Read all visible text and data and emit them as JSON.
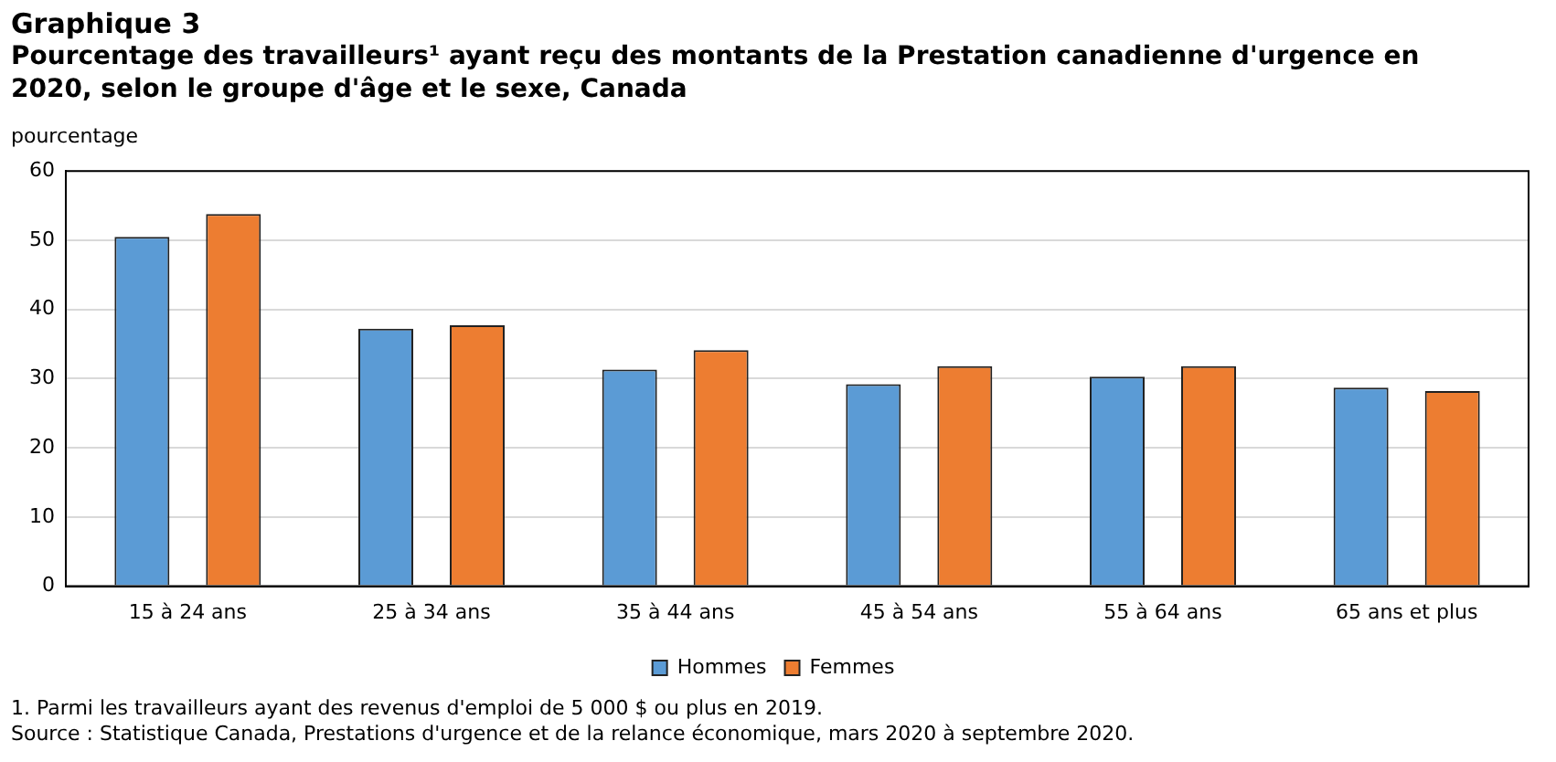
{
  "chart_data": {
    "type": "bar",
    "title": "Graphique 3",
    "subtitle": "Pourcentage des travailleurs¹ ayant reçu des montants de la Prestation canadienne d'urgence en 2020, selon le groupe d'âge et le sexe, Canada",
    "ylabel": "pourcentage",
    "categories": [
      "15 à 24 ans",
      "25 à 34 ans",
      "35 à 44 ans",
      "45 à 54 ans",
      "55 à 64 ans",
      "65 ans et plus"
    ],
    "series": [
      {
        "name": "Hommes",
        "color": "#5b9bd5",
        "values": [
          50.5,
          37.2,
          31.3,
          29.2,
          30.3,
          28.7
        ]
      },
      {
        "name": "Femmes",
        "color": "#ed7d31",
        "values": [
          53.8,
          37.7,
          34.1,
          31.8,
          31.8,
          28.2
        ]
      }
    ],
    "ylim": [
      0,
      60
    ],
    "yticks": [
      0,
      10,
      20,
      30,
      40,
      50,
      60
    ],
    "grid": "y",
    "legend": "bottom",
    "annotations": [
      "1. Parmi les travailleurs ayant des revenus d'emploi de 5 000 $ ou plus en 2019.",
      "Source : Statistique Canada, Prestations d'urgence et de la relance économique, mars 2020 à septembre 2020."
    ]
  }
}
